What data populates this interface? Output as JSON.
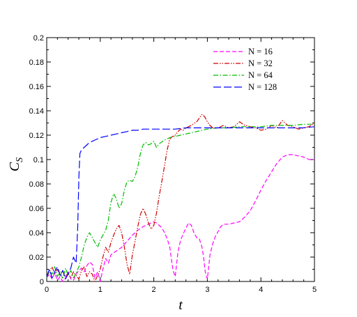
{
  "chart_data": {
    "type": "line",
    "xlabel": "t",
    "ylabel": "C",
    "ylabel_sub": "S",
    "xlim": [
      0,
      5
    ],
    "ylim": [
      0,
      0.2
    ],
    "xticks": [
      0,
      1,
      2,
      3,
      4,
      5
    ],
    "yticks": [
      0,
      0.02,
      0.04,
      0.06,
      0.08,
      0.1,
      0.12,
      0.14,
      0.16,
      0.18,
      0.2
    ],
    "grid": false,
    "legend_position": "top-right",
    "series": [
      {
        "name": "N = 16",
        "color": "#ff00ff",
        "dash": "dashed",
        "x": [
          0,
          0.05,
          0.1,
          0.15,
          0.2,
          0.25,
          0.3,
          0.35,
          0.4,
          0.45,
          0.5,
          0.55,
          0.6,
          0.65,
          0.7,
          0.75,
          0.8,
          0.85,
          0.9,
          0.95,
          1.0,
          1.05,
          1.1,
          1.15,
          1.2,
          1.3,
          1.4,
          1.5,
          1.6,
          1.7,
          1.8,
          1.9,
          2.0,
          2.05,
          2.1,
          2.15,
          2.2,
          2.25,
          2.3,
          2.33,
          2.36,
          2.4,
          2.45,
          2.5,
          2.55,
          2.6,
          2.65,
          2.7,
          2.75,
          2.8,
          2.85,
          2.9,
          2.93,
          2.96,
          3.0,
          3.05,
          3.1,
          3.15,
          3.2,
          3.25,
          3.3,
          3.4,
          3.5,
          3.6,
          3.65,
          3.7,
          3.8,
          3.9,
          4.0,
          4.1,
          4.2,
          4.3,
          4.4,
          4.5,
          4.6,
          4.7,
          4.8,
          4.9,
          5.0
        ],
        "y": [
          0.003,
          0.006,
          0.002,
          0.007,
          0.001,
          0.004,
          0.0,
          0.003,
          0.008,
          0.002,
          0.001,
          0.006,
          0.009,
          0.011,
          0.008,
          0.013,
          0.016,
          0.014,
          0.003,
          0.008,
          0.0,
          0.01,
          0.019,
          0.015,
          0.022,
          0.025,
          0.028,
          0.033,
          0.038,
          0.042,
          0.045,
          0.047,
          0.049,
          0.048,
          0.046,
          0.044,
          0.04,
          0.035,
          0.028,
          0.018,
          0.009,
          0.004,
          0.024,
          0.034,
          0.039,
          0.044,
          0.048,
          0.046,
          0.04,
          0.036,
          0.035,
          0.028,
          0.02,
          0.008,
          0.002,
          0.022,
          0.031,
          0.037,
          0.041,
          0.045,
          0.047,
          0.047,
          0.048,
          0.049,
          0.051,
          0.053,
          0.058,
          0.066,
          0.075,
          0.083,
          0.09,
          0.097,
          0.102,
          0.104,
          0.104,
          0.103,
          0.102,
          0.1,
          0.1
        ]
      },
      {
        "name": "N = 32",
        "color": "#cc0000",
        "dash": "dashdotdot",
        "x": [
          0,
          0.05,
          0.1,
          0.15,
          0.2,
          0.25,
          0.3,
          0.35,
          0.4,
          0.45,
          0.5,
          0.55,
          0.6,
          0.65,
          0.7,
          0.75,
          0.8,
          0.85,
          0.9,
          0.95,
          1.0,
          1.05,
          1.1,
          1.15,
          1.2,
          1.25,
          1.3,
          1.35,
          1.4,
          1.45,
          1.5,
          1.55,
          1.6,
          1.65,
          1.7,
          1.75,
          1.8,
          1.85,
          1.9,
          1.95,
          2.0,
          2.05,
          2.1,
          2.15,
          2.2,
          2.25,
          2.3,
          2.35,
          2.4,
          2.45,
          2.5,
          2.55,
          2.6,
          2.65,
          2.7,
          2.8,
          2.85,
          2.9,
          2.95,
          3.0,
          3.05,
          3.1,
          3.2,
          3.3,
          3.4,
          3.5,
          3.6,
          3.7,
          3.8,
          3.9,
          4.0,
          4.1,
          4.2,
          4.3,
          4.4,
          4.5,
          4.6,
          4.7,
          4.8,
          4.9,
          5.0
        ],
        "y": [
          0.004,
          0.008,
          0.012,
          0.006,
          0.01,
          0.005,
          0.009,
          0.004,
          0.007,
          0.003,
          0.008,
          0.005,
          0.002,
          0.009,
          0.012,
          0.004,
          0.008,
          0.006,
          0.0,
          0.005,
          0.01,
          0.02,
          0.028,
          0.024,
          0.032,
          0.038,
          0.043,
          0.046,
          0.04,
          0.028,
          0.014,
          0.006,
          0.022,
          0.033,
          0.045,
          0.055,
          0.06,
          0.055,
          0.048,
          0.043,
          0.046,
          0.056,
          0.07,
          0.082,
          0.095,
          0.108,
          0.117,
          0.119,
          0.12,
          0.123,
          0.125,
          0.124,
          0.126,
          0.127,
          0.128,
          0.131,
          0.134,
          0.137,
          0.135,
          0.131,
          0.128,
          0.126,
          0.126,
          0.128,
          0.126,
          0.127,
          0.131,
          0.128,
          0.127,
          0.126,
          0.124,
          0.125,
          0.128,
          0.126,
          0.132,
          0.128,
          0.127,
          0.125,
          0.126,
          0.127,
          0.13
        ]
      },
      {
        "name": "N = 64",
        "color": "#00bb00",
        "dash": "dashdot",
        "x": [
          0,
          0.05,
          0.1,
          0.15,
          0.2,
          0.25,
          0.3,
          0.35,
          0.4,
          0.45,
          0.5,
          0.55,
          0.6,
          0.65,
          0.7,
          0.75,
          0.8,
          0.85,
          0.9,
          0.95,
          1.0,
          1.05,
          1.1,
          1.15,
          1.2,
          1.25,
          1.3,
          1.35,
          1.4,
          1.45,
          1.5,
          1.55,
          1.6,
          1.65,
          1.7,
          1.75,
          1.8,
          1.85,
          1.9,
          1.95,
          2.0,
          2.05,
          2.1,
          2.2,
          2.3,
          2.4,
          2.5,
          2.6,
          2.7,
          2.8,
          2.9,
          3.0,
          3.2,
          3.4,
          3.6,
          3.8,
          4.0,
          4.2,
          4.4,
          4.6,
          4.8,
          5.0
        ],
        "y": [
          0.003,
          0.009,
          0.006,
          0.012,
          0.004,
          0.008,
          0.002,
          0.011,
          0.005,
          0.009,
          0.003,
          0.007,
          0.012,
          0.02,
          0.03,
          0.036,
          0.04,
          0.036,
          0.032,
          0.028,
          0.034,
          0.038,
          0.042,
          0.05,
          0.065,
          0.072,
          0.068,
          0.06,
          0.064,
          0.075,
          0.082,
          0.083,
          0.082,
          0.086,
          0.094,
          0.105,
          0.112,
          0.114,
          0.112,
          0.113,
          0.115,
          0.11,
          0.113,
          0.116,
          0.118,
          0.119,
          0.12,
          0.121,
          0.122,
          0.123,
          0.124,
          0.125,
          0.126,
          0.126,
          0.127,
          0.127,
          0.127,
          0.128,
          0.128,
          0.128,
          0.129,
          0.129
        ]
      },
      {
        "name": "N = 128",
        "color": "#0000ff",
        "dash": "longdash",
        "x": [
          0,
          0.05,
          0.1,
          0.15,
          0.2,
          0.25,
          0.3,
          0.35,
          0.4,
          0.45,
          0.5,
          0.55,
          0.58,
          0.6,
          0.62,
          0.65,
          0.7,
          0.75,
          0.8,
          0.85,
          0.9,
          0.95,
          1.0,
          1.1,
          1.2,
          1.3,
          1.4,
          1.5,
          1.6,
          1.7,
          1.8,
          1.9,
          2.0,
          2.2,
          2.4,
          2.6,
          2.8,
          3.0,
          3.2,
          3.4,
          3.6,
          3.8,
          4.0,
          4.2,
          4.4,
          4.6,
          4.8,
          5.0
        ],
        "y": [
          0.004,
          0.01,
          0.003,
          0.008,
          0.012,
          0.005,
          0.009,
          0.002,
          0.006,
          0.011,
          0.02,
          0.015,
          0.045,
          0.085,
          0.105,
          0.108,
          0.11,
          0.112,
          0.114,
          0.115,
          0.116,
          0.117,
          0.118,
          0.119,
          0.12,
          0.121,
          0.122,
          0.123,
          0.124,
          0.124,
          0.125,
          0.125,
          0.125,
          0.125,
          0.125,
          0.126,
          0.126,
          0.126,
          0.126,
          0.126,
          0.126,
          0.126,
          0.126,
          0.126,
          0.126,
          0.126,
          0.126,
          0.127
        ]
      }
    ]
  }
}
